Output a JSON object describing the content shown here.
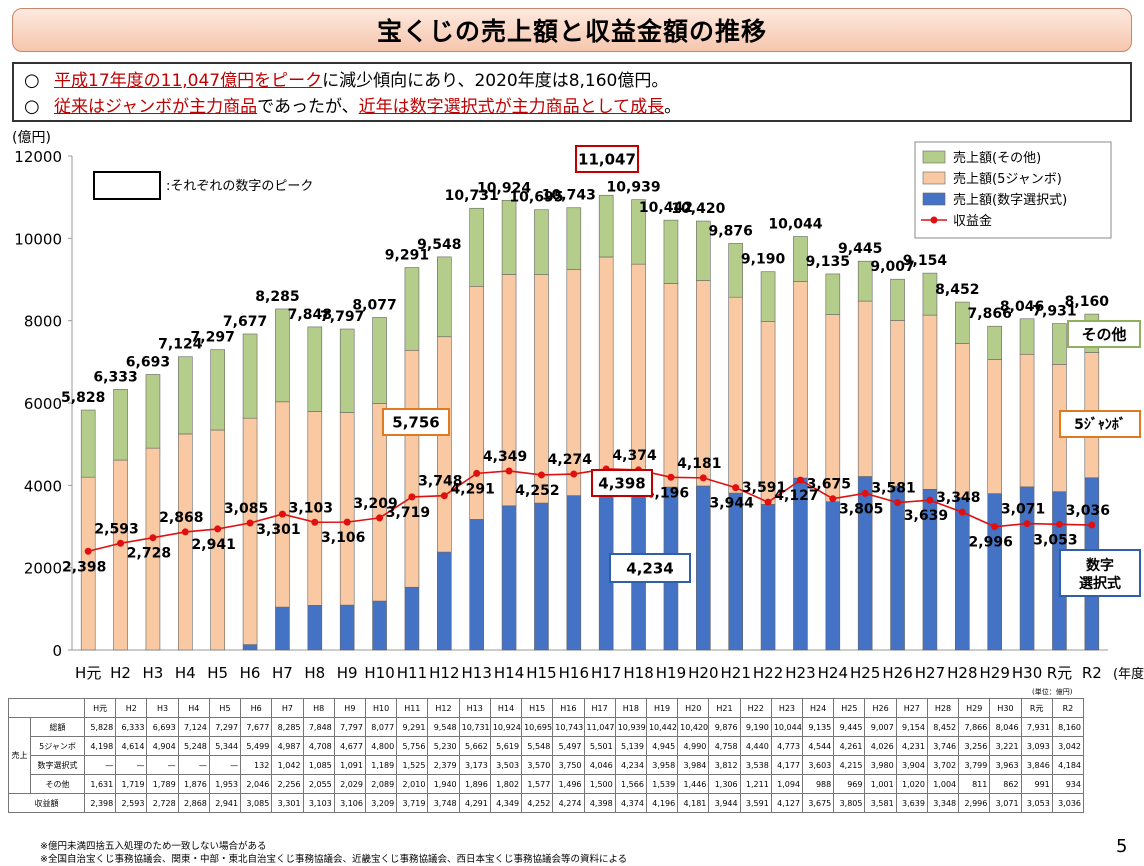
{
  "title": "宝くじの売上額と収益金額の推移",
  "summary": {
    "line1_mark": "○",
    "line1_red": "平成17年度の11,047億円をピーク",
    "line1_rest": "に減少傾向にあり、2020年度は8,160億円。",
    "line2_mark": "○",
    "line2_red1": "従来はジャンボが主力商品",
    "line2_mid": "であったが、",
    "line2_red2": "近年は数字選択式が主力商品として成長",
    "line2_end": "。"
  },
  "colors": {
    "numbers": "#4472c4",
    "jumbo": "#f8c9a3",
    "other": "#b4cd8a",
    "profit": "#e01010",
    "accent_red": "#c00000",
    "accent_orange": "#e07a20",
    "accent_green": "#90b060",
    "accent_blue": "#2e5fa8"
  },
  "chart_data": {
    "type": "bar",
    "stacked": true,
    "ylabel": "(億円)",
    "xlabel": "(年度)",
    "ylim": [
      0,
      12000
    ],
    "yticks": [
      0,
      2000,
      4000,
      6000,
      8000,
      10000,
      12000
    ],
    "categories": [
      "H元",
      "H2",
      "H3",
      "H4",
      "H5",
      "H6",
      "H7",
      "H8",
      "H9",
      "H10",
      "H11",
      "H12",
      "H13",
      "H14",
      "H15",
      "H16",
      "H17",
      "H18",
      "H19",
      "H20",
      "H21",
      "H22",
      "H23",
      "H24",
      "H25",
      "H26",
      "H27",
      "H28",
      "H29",
      "H30",
      "R元",
      "R2"
    ],
    "series": [
      {
        "name": "売上額(数字選択式)",
        "values": [
          0,
          0,
          0,
          0,
          0,
          132,
          1042,
          1085,
          1091,
          1189,
          1525,
          2379,
          3173,
          3503,
          3570,
          3750,
          4046,
          4234,
          3958,
          3984,
          3812,
          3538,
          4177,
          3603,
          4215,
          3980,
          3904,
          3702,
          3799,
          3963,
          3846,
          4184
        ]
      },
      {
        "name": "売上額(5ジャンボ)",
        "values": [
          4198,
          4614,
          4904,
          5248,
          5344,
          5499,
          4987,
          4708,
          4677,
          4800,
          5756,
          5230,
          5662,
          5619,
          5548,
          5497,
          5501,
          5139,
          4945,
          4990,
          4758,
          4440,
          4773,
          4544,
          4261,
          4026,
          4231,
          3746,
          3256,
          3221,
          3093,
          3042
        ]
      },
      {
        "name": "売上額(その他)",
        "values": [
          1631,
          1719,
          1789,
          1876,
          1953,
          2046,
          2256,
          2055,
          2029,
          2089,
          2010,
          1940,
          1896,
          1802,
          1577,
          1496,
          1500,
          1566,
          1539,
          1446,
          1306,
          1211,
          1094,
          988,
          969,
          1001,
          1020,
          1004,
          811,
          862,
          991,
          934
        ]
      },
      {
        "name": "収益金",
        "type": "line",
        "values": [
          2398,
          2593,
          2728,
          2868,
          2941,
          3085,
          3301,
          3103,
          3106,
          3209,
          3719,
          3748,
          4291,
          4349,
          4252,
          4274,
          4398,
          4374,
          4196,
          4181,
          3944,
          3591,
          4127,
          3675,
          3805,
          3581,
          3639,
          3348,
          2996,
          3071,
          3053,
          3036
        ]
      }
    ],
    "totals": [
      5828,
      6333,
      6693,
      7124,
      7297,
      7677,
      8285,
      7848,
      7797,
      8077,
      9291,
      9548,
      10731,
      10924,
      10695,
      10743,
      11047,
      10939,
      10442,
      10420,
      9876,
      9190,
      10044,
      9135,
      9445,
      9007,
      9154,
      8452,
      7866,
      8046,
      7931,
      8160
    ],
    "total_labels": [
      "5,828",
      "6,333",
      "6,693",
      "7,124",
      "7,297",
      "7,677",
      "8,285",
      "7,848",
      "7,797",
      "8,077",
      "9,291",
      "9,548",
      "10,731",
      "10,924",
      "10,695",
      "10,743",
      "11,047",
      "10,939",
      "10,442",
      "10,420",
      "9,876",
      "9,190",
      "10,044",
      "9,135",
      "9,445",
      "9,007",
      "9,154",
      "8,452",
      "7,866",
      "8,046",
      "7,931",
      "8,160"
    ],
    "profit_labels": [
      "2,398",
      "2,593",
      "2,728",
      "2,868",
      "2,941",
      "3,085",
      "3,301",
      "3,103",
      "3,106",
      "3,209",
      "3,719",
      "3,748",
      "4,291",
      "4,349",
      "4,252",
      "4,274",
      "4,398",
      "4,374",
      "4,196",
      "4,181",
      "3,944",
      "3,591",
      "4,127",
      "3,675",
      "3,805",
      "3,581",
      "3,639",
      "3,348",
      "2,996",
      "3,071",
      "3,053",
      "3,036"
    ],
    "legend": [
      "売上額(その他)",
      "売上額(5ジャンボ)",
      "売上額(数字選択式)",
      "収益金"
    ],
    "legend_position": "top-right",
    "grid": false,
    "annotations": {
      "peak_note": ":それぞれの数字のピーク",
      "peak_total": "11,047",
      "peak_jumbo": "5,756",
      "peak_profit": "4,398",
      "peak_numbers": "4,234",
      "label_other": "その他",
      "label_jumbo": "5ｼﾞｬﾝﾎﾞ",
      "label_numbers_1": "数字",
      "label_numbers_2": "選択式"
    }
  },
  "table": {
    "unit": "(単位：億円)",
    "group_label": "売上",
    "headers": [
      "H元",
      "H2",
      "H3",
      "H4",
      "H5",
      "H6",
      "H7",
      "H8",
      "H9",
      "H10",
      "H11",
      "H12",
      "H13",
      "H14",
      "H15",
      "H16",
      "H17",
      "H18",
      "H19",
      "H20",
      "H21",
      "H22",
      "H23",
      "H24",
      "H25",
      "H26",
      "H27",
      "H28",
      "H29",
      "H30",
      "R元",
      "R2"
    ],
    "rows": [
      {
        "label": "総額",
        "values": [
          "5,828",
          "6,333",
          "6,693",
          "7,124",
          "7,297",
          "7,677",
          "8,285",
          "7,848",
          "7,797",
          "8,077",
          "9,291",
          "9,548",
          "10,731",
          "10,924",
          "10,695",
          "10,743",
          "11,047",
          "10,939",
          "10,442",
          "10,420",
          "9,876",
          "9,190",
          "10,044",
          "9,135",
          "9,445",
          "9,007",
          "9,154",
          "8,452",
          "7,866",
          "8,046",
          "7,931",
          "8,160"
        ]
      },
      {
        "label": "5ジャンボ",
        "values": [
          "4,198",
          "4,614",
          "4,904",
          "5,248",
          "5,344",
          "5,499",
          "4,987",
          "4,708",
          "4,677",
          "4,800",
          "5,756",
          "5,230",
          "5,662",
          "5,619",
          "5,548",
          "5,497",
          "5,501",
          "5,139",
          "4,945",
          "4,990",
          "4,758",
          "4,440",
          "4,773",
          "4,544",
          "4,261",
          "4,026",
          "4,231",
          "3,746",
          "3,256",
          "3,221",
          "3,093",
          "3,042"
        ]
      },
      {
        "label": "数字選択式",
        "values": [
          "—",
          "—",
          "—",
          "—",
          "—",
          "132",
          "1,042",
          "1,085",
          "1,091",
          "1,189",
          "1,525",
          "2,379",
          "3,173",
          "3,503",
          "3,570",
          "3,750",
          "4,046",
          "4,234",
          "3,958",
          "3,984",
          "3,812",
          "3,538",
          "4,177",
          "3,603",
          "4,215",
          "3,980",
          "3,904",
          "3,702",
          "3,799",
          "3,963",
          "3,846",
          "4,184"
        ]
      },
      {
        "label": "その他",
        "values": [
          "1,631",
          "1,719",
          "1,789",
          "1,876",
          "1,953",
          "2,046",
          "2,256",
          "2,055",
          "2,029",
          "2,089",
          "2,010",
          "1,940",
          "1,896",
          "1,802",
          "1,577",
          "1,496",
          "1,500",
          "1,566",
          "1,539",
          "1,446",
          "1,306",
          "1,211",
          "1,094",
          "988",
          "969",
          "1,001",
          "1,020",
          "1,004",
          "811",
          "862",
          "991",
          "934"
        ]
      }
    ],
    "profit_row": {
      "label": "収益額",
      "values": [
        "2,398",
        "2,593",
        "2,728",
        "2,868",
        "2,941",
        "3,085",
        "3,301",
        "3,103",
        "3,106",
        "3,209",
        "3,719",
        "3,748",
        "4,291",
        "4,349",
        "4,252",
        "4,274",
        "4,398",
        "4,374",
        "4,196",
        "4,181",
        "3,944",
        "3,591",
        "4,127",
        "3,675",
        "3,805",
        "3,581",
        "3,639",
        "3,348",
        "2,996",
        "3,071",
        "3,053",
        "3,036"
      ]
    }
  },
  "footnotes": [
    "※億円未満四捨五入処理のため一致しない場合がある",
    "※全国自治宝くじ事務協議会、関東・中部・東北自治宝くじ事務協議会、近畿宝くじ事務協議会、西日本宝くじ事務協議会等の資料による"
  ],
  "page_number": "5"
}
